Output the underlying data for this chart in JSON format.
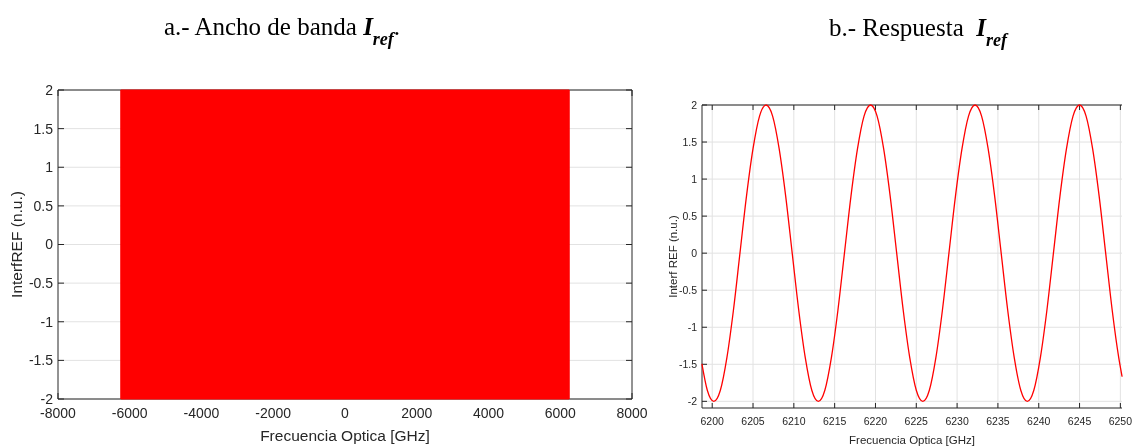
{
  "chart_data": [
    {
      "type": "area",
      "title": "a.- Ancho de banda I$_{ref}$.",
      "xlabel": "Frecuencia Optica [GHz]",
      "ylabel": "InterfREF (n.u.)",
      "xlim": [
        -8000,
        8000
      ],
      "xticks": [
        -8000,
        -6000,
        -4000,
        -2000,
        0,
        2000,
        4000,
        6000,
        8000
      ],
      "ylim": [
        -2,
        2
      ],
      "yticks": [
        -2,
        -1.5,
        -1,
        -0.5,
        0,
        0.5,
        1,
        1.5,
        2
      ],
      "grid": "y",
      "series": [
        {
          "color": "#ff0000",
          "x": [
            -6250,
            6250
          ],
          "values": [
            2,
            2
          ]
        },
        {
          "color": "#ff0000",
          "x": [
            -6250,
            6250
          ],
          "values": [
            -2,
            -2
          ]
        }
      ]
    },
    {
      "type": "line",
      "title": "b.- Respuesta  I$_{ref}$",
      "xlabel": "Frecuencia Optica [GHz]",
      "ylabel": "Interf REF (n.u.)",
      "xlim": [
        6198.75,
        6250.2
      ],
      "xticks": [
        6200,
        6205,
        6210,
        6215,
        6220,
        6225,
        6230,
        6235,
        6240,
        6245,
        6250
      ],
      "ylim": [
        -2.09,
        2
      ],
      "yticks": [
        -2,
        -1.5,
        -1,
        -0.5,
        0,
        0.5,
        1,
        1.5,
        2
      ],
      "grid": true,
      "series": [
        {
          "color": "#ff0000",
          "x": [
            6198.75,
            6199.4,
            6200.2,
            6201.0,
            6201.8,
            6202.6,
            6203.4,
            6204.2,
            6205.0,
            6205.8,
            6206.6,
            6207.4,
            6208.2,
            6209.0,
            6209.8,
            6210.6,
            6211.4,
            6212.2,
            6213.0,
            6213.8,
            6214.6,
            6215.4,
            6216.2,
            6217.0,
            6217.8,
            6218.6,
            6219.4,
            6220.2,
            6221.0,
            6221.8,
            6222.6,
            6223.4,
            6224.2,
            6225.0,
            6225.8,
            6226.6,
            6227.4,
            6228.2,
            6229.0,
            6229.8,
            6230.6,
            6231.4,
            6232.2,
            6233.0,
            6233.8,
            6234.6,
            6235.4,
            6236.2,
            6237.0,
            6237.8,
            6238.6,
            6239.4,
            6240.2,
            6241.0,
            6241.8,
            6242.6,
            6243.4,
            6244.2,
            6245.0,
            6245.8,
            6246.6,
            6247.4,
            6248.2,
            6249.0,
            6249.8,
            6250.2
          ],
          "values": [
            -1.5,
            -1.85,
            -2,
            -1.85,
            -1.41,
            -0.77,
            0,
            0.77,
            1.41,
            1.85,
            2,
            1.85,
            1.41,
            0.77,
            0,
            -0.77,
            -1.41,
            -1.85,
            -2,
            -1.85,
            -1.41,
            -0.77,
            0,
            0.77,
            1.41,
            1.85,
            2,
            1.85,
            1.41,
            0.77,
            0,
            -0.77,
            -1.41,
            -1.85,
            -2,
            -1.85,
            -1.41,
            -0.77,
            0,
            0.77,
            1.41,
            1.85,
            2,
            1.85,
            1.41,
            0.77,
            0,
            -0.77,
            -1.41,
            -1.85,
            -2,
            -1.85,
            -1.41,
            -0.77,
            0,
            0.77,
            1.41,
            1.85,
            2,
            1.85,
            1.41,
            0.77,
            0,
            -0.77,
            -1.41,
            -1.66
          ]
        }
      ]
    }
  ]
}
